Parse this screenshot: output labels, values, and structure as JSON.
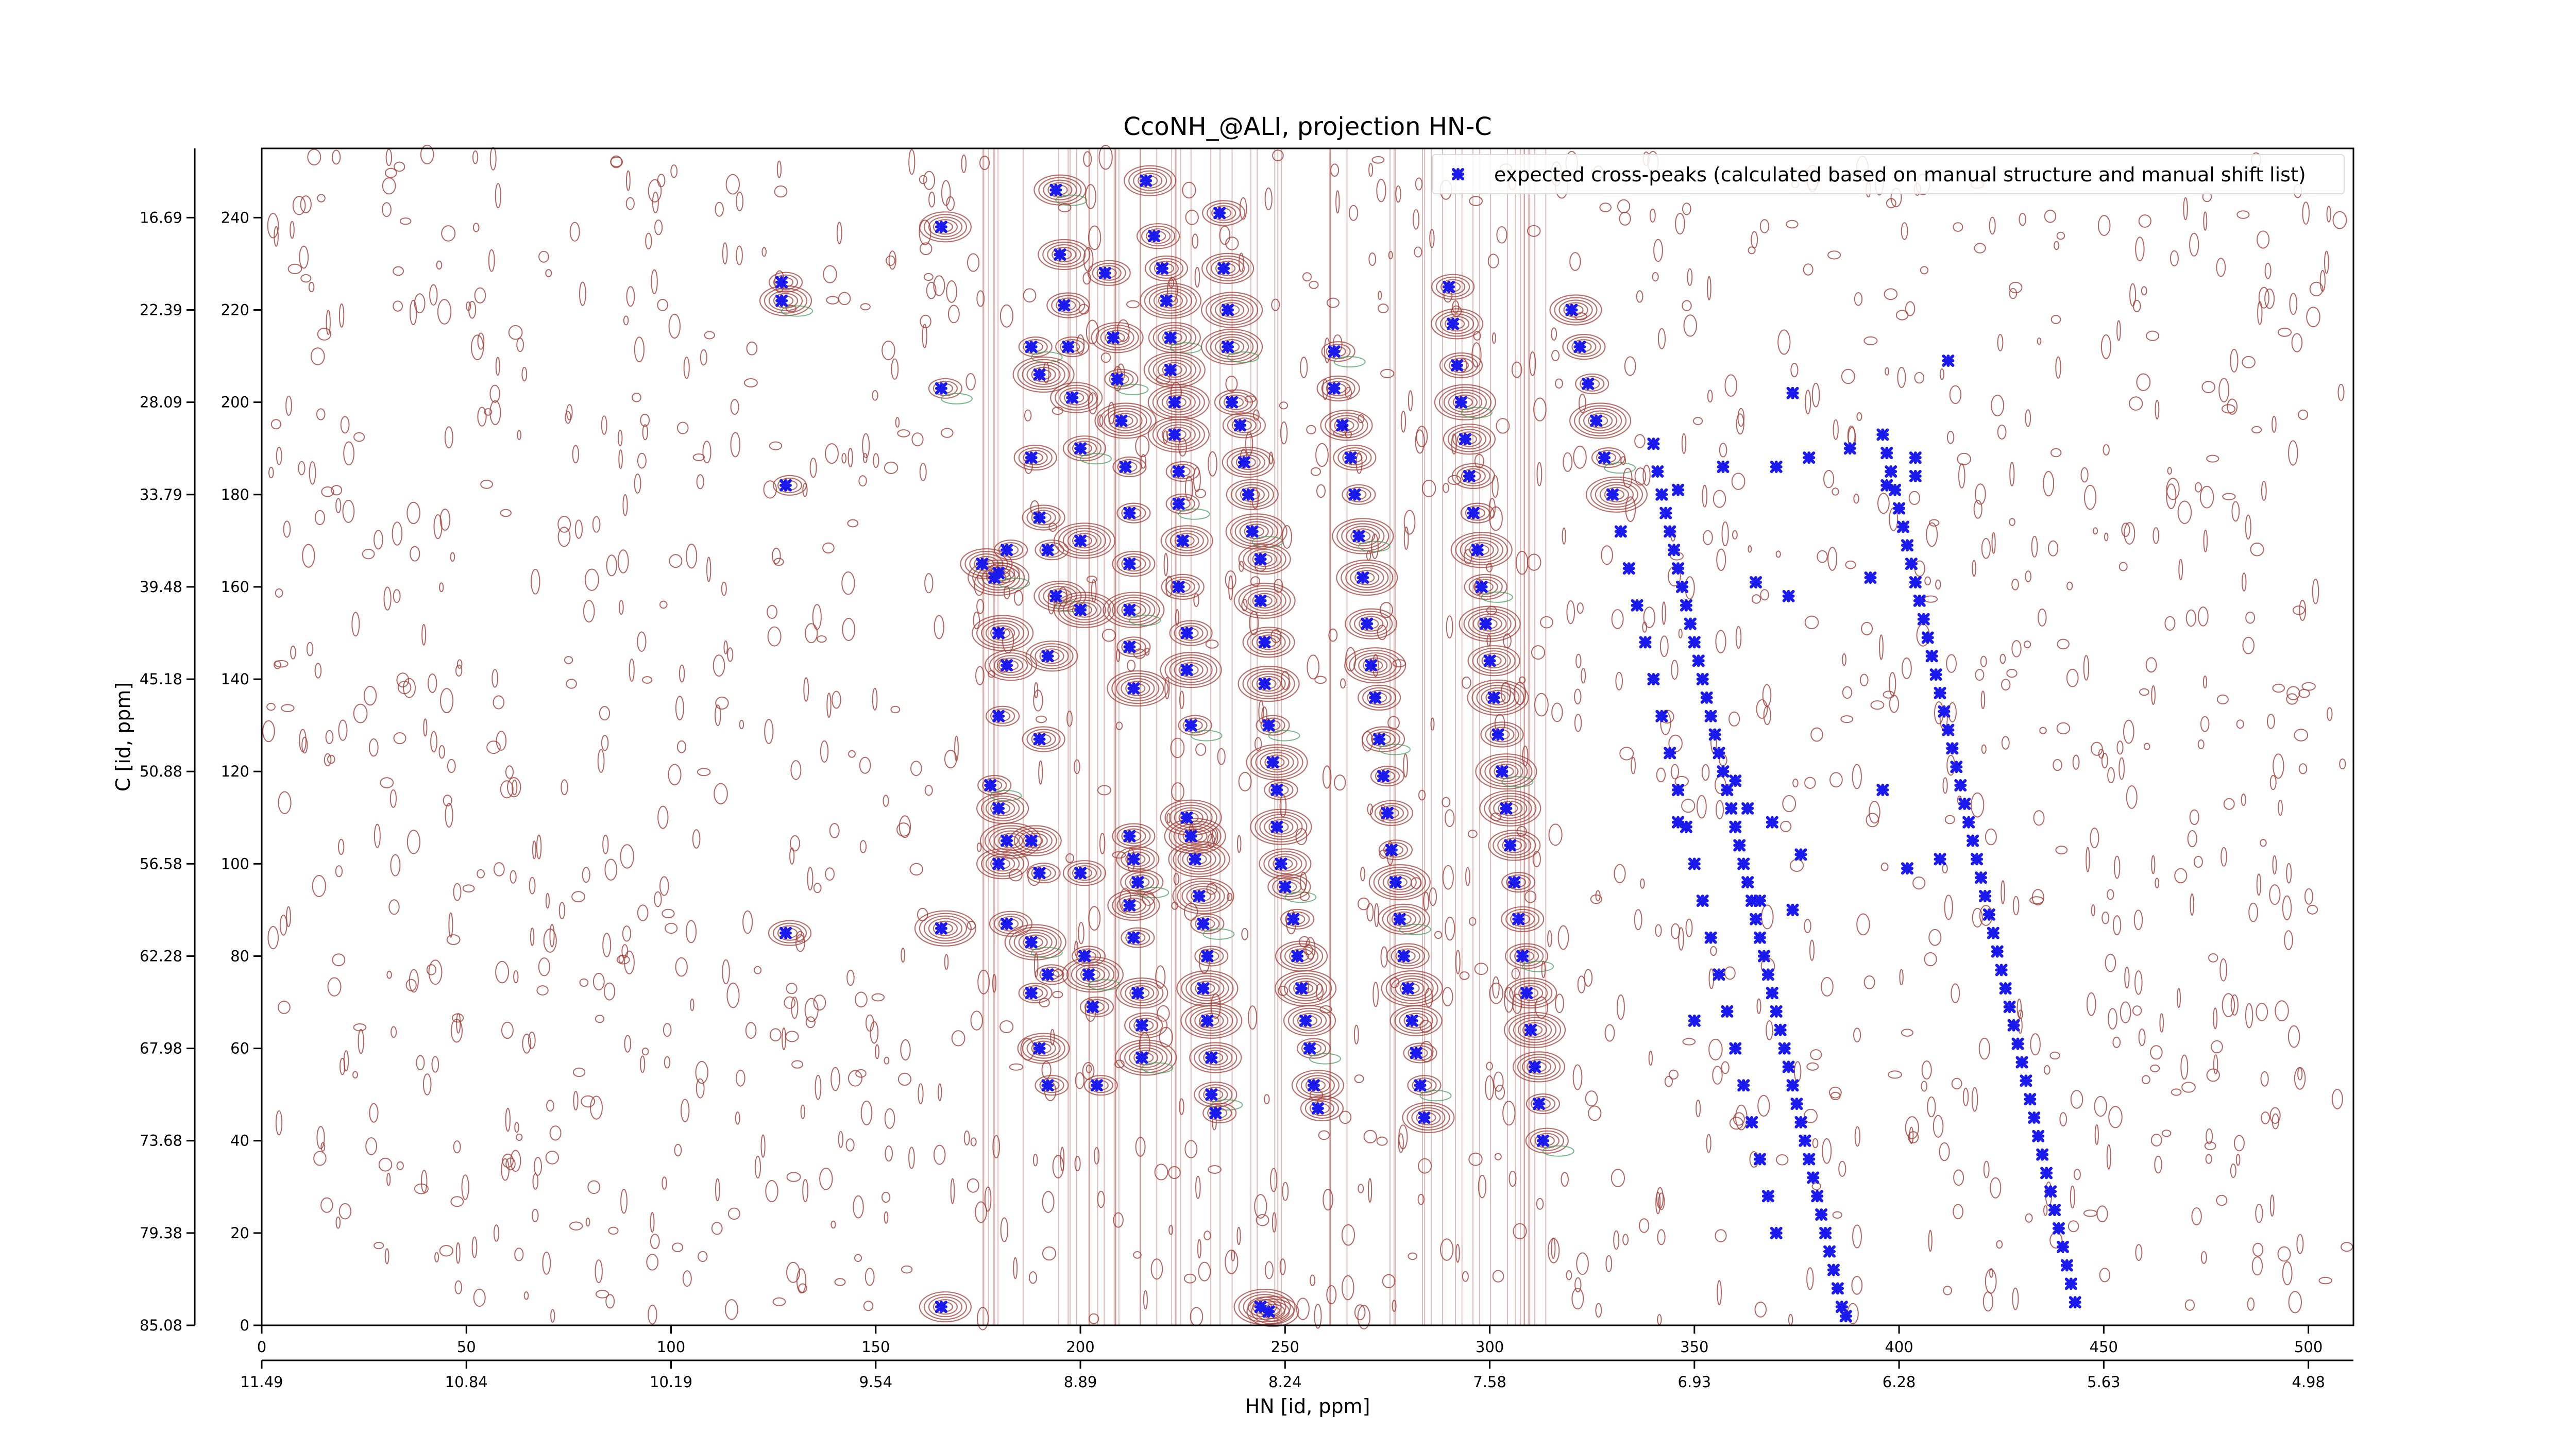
{
  "chart_data": {
    "type": "scatter",
    "title": "CcoNH_@ALI, projection HN-C",
    "xlabel": "HN [id, ppm]",
    "ylabel": "C [id, ppm]",
    "xlim": [
      0,
      511
    ],
    "ylim": [
      0,
      255
    ],
    "x_index_ticks": [
      "0",
      "50",
      "100",
      "150",
      "200",
      "250",
      "300",
      "350",
      "400",
      "450",
      "500"
    ],
    "x_ppm_ticks": [
      "11.49",
      "10.84",
      "10.19",
      "9.54",
      "8.89",
      "8.24",
      "7.58",
      "6.93",
      "6.28",
      "5.63",
      "4.98"
    ],
    "y_index_ticks": [
      "0",
      "20",
      "40",
      "60",
      "80",
      "100",
      "120",
      "140",
      "160",
      "180",
      "200",
      "220",
      "240"
    ],
    "y_ppm_ticks": [
      "85.08",
      "79.38",
      "73.68",
      "67.98",
      "62.28",
      "56.58",
      "50.88",
      "45.18",
      "39.48",
      "33.79",
      "28.09",
      "22.39",
      "16.69"
    ],
    "legend": {
      "position": "top-right",
      "entries": [
        "expected cross-peaks (calculated based on manual structure and manual shift list)"
      ]
    },
    "colors": {
      "positive_contour": "#a0403a",
      "negative_contour": "#3c9a5a",
      "marker": "#1a1aee"
    },
    "series": [
      {
        "name": "expected cross-peaks (calculated based on manual structure and manual shift list)",
        "marker": "x",
        "points": [
          [
            127,
            222
          ],
          [
            127,
            226
          ],
          [
            128,
            182
          ],
          [
            128,
            85
          ],
          [
            166,
            238
          ],
          [
            166,
            203
          ],
          [
            166,
            86
          ],
          [
            166,
            4
          ],
          [
            176,
            165
          ],
          [
            179,
            162
          ],
          [
            180,
            163
          ],
          [
            182,
            168
          ],
          [
            180,
            150
          ],
          [
            182,
            143
          ],
          [
            180,
            132
          ],
          [
            178,
            117
          ],
          [
            180,
            112
          ],
          [
            182,
            105
          ],
          [
            180,
            100
          ],
          [
            182,
            87
          ],
          [
            188,
            212
          ],
          [
            190,
            206
          ],
          [
            188,
            188
          ],
          [
            190,
            175
          ],
          [
            192,
            168
          ],
          [
            194,
            158
          ],
          [
            192,
            145
          ],
          [
            190,
            127
          ],
          [
            188,
            105
          ],
          [
            190,
            98
          ],
          [
            188,
            83
          ],
          [
            192,
            76
          ],
          [
            188,
            72
          ],
          [
            190,
            60
          ],
          [
            192,
            52
          ],
          [
            194,
            246
          ],
          [
            195,
            232
          ],
          [
            196,
            221
          ],
          [
            197,
            212
          ],
          [
            198,
            201
          ],
          [
            200,
            190
          ],
          [
            200,
            170
          ],
          [
            200,
            155
          ],
          [
            200,
            98
          ],
          [
            201,
            80
          ],
          [
            202,
            76
          ],
          [
            203,
            69
          ],
          [
            204,
            52
          ],
          [
            206,
            228
          ],
          [
            208,
            214
          ],
          [
            209,
            205
          ],
          [
            210,
            196
          ],
          [
            211,
            186
          ],
          [
            212,
            176
          ],
          [
            212,
            165
          ],
          [
            212,
            155
          ],
          [
            212,
            147
          ],
          [
            213,
            138
          ],
          [
            212,
            106
          ],
          [
            213,
            101
          ],
          [
            214,
            96
          ],
          [
            212,
            91
          ],
          [
            213,
            84
          ],
          [
            214,
            72
          ],
          [
            215,
            65
          ],
          [
            215,
            58
          ],
          [
            216,
            248
          ],
          [
            218,
            236
          ],
          [
            220,
            229
          ],
          [
            221,
            222
          ],
          [
            222,
            214
          ],
          [
            222,
            207
          ],
          [
            223,
            200
          ],
          [
            223,
            193
          ],
          [
            224,
            185
          ],
          [
            224,
            178
          ],
          [
            225,
            170
          ],
          [
            224,
            160
          ],
          [
            226,
            150
          ],
          [
            226,
            142
          ],
          [
            227,
            130
          ],
          [
            226,
            110
          ],
          [
            227,
            106
          ],
          [
            228,
            101
          ],
          [
            229,
            93
          ],
          [
            230,
            87
          ],
          [
            231,
            80
          ],
          [
            230,
            73
          ],
          [
            231,
            66
          ],
          [
            232,
            58
          ],
          [
            232,
            50
          ],
          [
            233,
            46
          ],
          [
            234,
            241
          ],
          [
            235,
            229
          ],
          [
            236,
            220
          ],
          [
            236,
            212
          ],
          [
            237,
            200
          ],
          [
            239,
            195
          ],
          [
            240,
            187
          ],
          [
            241,
            180
          ],
          [
            242,
            172
          ],
          [
            244,
            166
          ],
          [
            244,
            157
          ],
          [
            245,
            148
          ],
          [
            245,
            139
          ],
          [
            246,
            130
          ],
          [
            247,
            122
          ],
          [
            248,
            116
          ],
          [
            248,
            108
          ],
          [
            249,
            100
          ],
          [
            250,
            95
          ],
          [
            252,
            88
          ],
          [
            253,
            80
          ],
          [
            254,
            73
          ],
          [
            255,
            66
          ],
          [
            256,
            60
          ],
          [
            257,
            52
          ],
          [
            258,
            47
          ],
          [
            246,
            3
          ],
          [
            244,
            4
          ],
          [
            262,
            211
          ],
          [
            262,
            203
          ],
          [
            264,
            195
          ],
          [
            266,
            188
          ],
          [
            267,
            180
          ],
          [
            268,
            171
          ],
          [
            269,
            162
          ],
          [
            270,
            152
          ],
          [
            271,
            143
          ],
          [
            272,
            136
          ],
          [
            273,
            127
          ],
          [
            274,
            119
          ],
          [
            275,
            111
          ],
          [
            276,
            103
          ],
          [
            277,
            96
          ],
          [
            278,
            88
          ],
          [
            279,
            80
          ],
          [
            280,
            73
          ],
          [
            281,
            66
          ],
          [
            282,
            59
          ],
          [
            283,
            52
          ],
          [
            284,
            45
          ],
          [
            290,
            225
          ],
          [
            291,
            217
          ],
          [
            292,
            208
          ],
          [
            293,
            200
          ],
          [
            294,
            192
          ],
          [
            295,
            184
          ],
          [
            296,
            176
          ],
          [
            297,
            168
          ],
          [
            298,
            160
          ],
          [
            299,
            152
          ],
          [
            300,
            144
          ],
          [
            301,
            136
          ],
          [
            302,
            128
          ],
          [
            303,
            120
          ],
          [
            304,
            112
          ],
          [
            305,
            104
          ],
          [
            306,
            96
          ],
          [
            307,
            88
          ],
          [
            308,
            80
          ],
          [
            309,
            72
          ],
          [
            310,
            64
          ],
          [
            311,
            56
          ],
          [
            312,
            48
          ],
          [
            313,
            40
          ],
          [
            320,
            220
          ],
          [
            322,
            212
          ],
          [
            324,
            204
          ],
          [
            326,
            196
          ],
          [
            328,
            188
          ],
          [
            330,
            180
          ],
          [
            332,
            172
          ],
          [
            334,
            164
          ],
          [
            336,
            156
          ],
          [
            338,
            148
          ],
          [
            340,
            140
          ],
          [
            342,
            132
          ],
          [
            344,
            124
          ],
          [
            346,
            116
          ],
          [
            348,
            108
          ],
          [
            350,
            100
          ],
          [
            352,
            92
          ],
          [
            354,
            84
          ],
          [
            356,
            76
          ],
          [
            358,
            68
          ],
          [
            360,
            60
          ],
          [
            362,
            52
          ],
          [
            364,
            44
          ],
          [
            366,
            36
          ],
          [
            368,
            28
          ],
          [
            370,
            20
          ],
          [
            340,
            191
          ],
          [
            341,
            185
          ],
          [
            342,
            180
          ],
          [
            343,
            176
          ],
          [
            344,
            172
          ],
          [
            345,
            168
          ],
          [
            346,
            164
          ],
          [
            347,
            160
          ],
          [
            348,
            156
          ],
          [
            349,
            152
          ],
          [
            350,
            148
          ],
          [
            351,
            144
          ],
          [
            352,
            140
          ],
          [
            353,
            136
          ],
          [
            354,
            132
          ],
          [
            355,
            128
          ],
          [
            356,
            124
          ],
          [
            357,
            120
          ],
          [
            358,
            116
          ],
          [
            359,
            112
          ],
          [
            360,
            108
          ],
          [
            361,
            104
          ],
          [
            362,
            100
          ],
          [
            363,
            96
          ],
          [
            364,
            92
          ],
          [
            365,
            88
          ],
          [
            366,
            84
          ],
          [
            367,
            80
          ],
          [
            368,
            76
          ],
          [
            369,
            72
          ],
          [
            370,
            68
          ],
          [
            371,
            64
          ],
          [
            372,
            60
          ],
          [
            373,
            56
          ],
          [
            374,
            52
          ],
          [
            375,
            48
          ],
          [
            376,
            44
          ],
          [
            377,
            40
          ],
          [
            378,
            36
          ],
          [
            379,
            32
          ],
          [
            380,
            28
          ],
          [
            381,
            24
          ],
          [
            382,
            20
          ],
          [
            383,
            16
          ],
          [
            384,
            12
          ],
          [
            385,
            8
          ],
          [
            386,
            4
          ],
          [
            387,
            2
          ],
          [
            396,
            193
          ],
          [
            397,
            189
          ],
          [
            398,
            185
          ],
          [
            399,
            181
          ],
          [
            400,
            177
          ],
          [
            401,
            173
          ],
          [
            402,
            169
          ],
          [
            403,
            165
          ],
          [
            404,
            161
          ],
          [
            405,
            157
          ],
          [
            406,
            153
          ],
          [
            407,
            149
          ],
          [
            408,
            145
          ],
          [
            409,
            141
          ],
          [
            410,
            137
          ],
          [
            411,
            133
          ],
          [
            412,
            129
          ],
          [
            413,
            125
          ],
          [
            414,
            121
          ],
          [
            415,
            117
          ],
          [
            416,
            113
          ],
          [
            417,
            109
          ],
          [
            418,
            105
          ],
          [
            419,
            101
          ],
          [
            420,
            97
          ],
          [
            421,
            93
          ],
          [
            422,
            89
          ],
          [
            423,
            85
          ],
          [
            424,
            81
          ],
          [
            425,
            77
          ],
          [
            426,
            73
          ],
          [
            427,
            69
          ],
          [
            428,
            65
          ],
          [
            429,
            61
          ],
          [
            430,
            57
          ],
          [
            431,
            53
          ],
          [
            432,
            49
          ],
          [
            433,
            45
          ],
          [
            434,
            41
          ],
          [
            435,
            37
          ],
          [
            436,
            33
          ],
          [
            437,
            29
          ],
          [
            438,
            25
          ],
          [
            439,
            21
          ],
          [
            440,
            17
          ],
          [
            441,
            13
          ],
          [
            442,
            9
          ],
          [
            443,
            5
          ],
          [
            346,
            181
          ],
          [
            357,
            186
          ],
          [
            370,
            186
          ],
          [
            378,
            188
          ],
          [
            388,
            190
          ],
          [
            397,
            182
          ],
          [
            412,
            209
          ],
          [
            374,
            202
          ],
          [
            404,
            188
          ],
          [
            404,
            184
          ],
          [
            365,
            161
          ],
          [
            373,
            158
          ],
          [
            393,
            162
          ],
          [
            360,
            118
          ],
          [
            363,
            112
          ],
          [
            346,
            109
          ],
          [
            369,
            109
          ],
          [
            376,
            102
          ],
          [
            396,
            116
          ],
          [
            402,
            99
          ],
          [
            410,
            101
          ],
          [
            366,
            92
          ],
          [
            374,
            90
          ],
          [
            350,
            66
          ]
        ]
      }
    ]
  }
}
